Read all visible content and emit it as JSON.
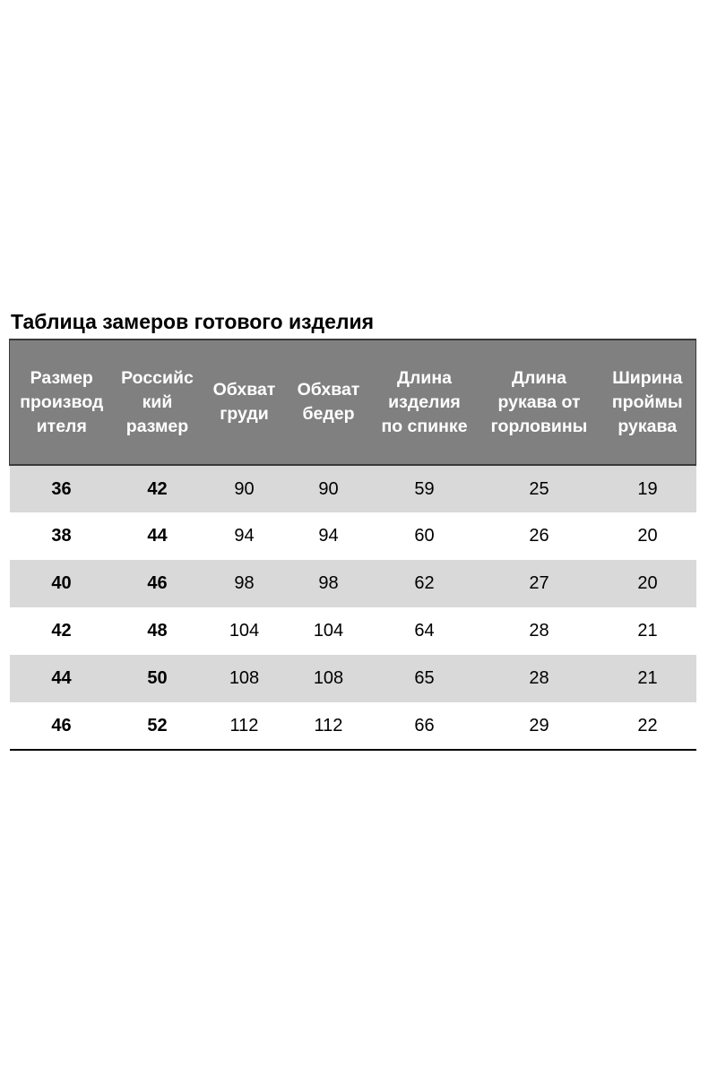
{
  "title": "Таблица замеров готового изделия",
  "table": {
    "headers": [
      [
        "Размер",
        "производ",
        "ителя"
      ],
      [
        "Российс",
        "кий",
        "размер"
      ],
      [
        "Обхват",
        "груди"
      ],
      [
        "Обхват",
        "бедер"
      ],
      [
        "Длина",
        "изделия",
        "по спинке"
      ],
      [
        "Длина",
        "рукава от",
        "горловины"
      ],
      [
        "Ширина",
        "проймы",
        "рукава"
      ]
    ],
    "rows": [
      [
        "36",
        "42",
        "90",
        "90",
        "59",
        "25",
        "19"
      ],
      [
        "38",
        "44",
        "94",
        "94",
        "60",
        "26",
        "20"
      ],
      [
        "40",
        "46",
        "98",
        "98",
        "62",
        "27",
        "20"
      ],
      [
        "42",
        "48",
        "104",
        "104",
        "64",
        "28",
        "21"
      ],
      [
        "44",
        "50",
        "108",
        "108",
        "65",
        "28",
        "21"
      ],
      [
        "46",
        "52",
        "112",
        "112",
        "66",
        "29",
        "22"
      ]
    ]
  },
  "colors": {
    "header_bg": "#808080",
    "header_text": "#ffffff",
    "stripe_bg": "#d9d9d9"
  }
}
